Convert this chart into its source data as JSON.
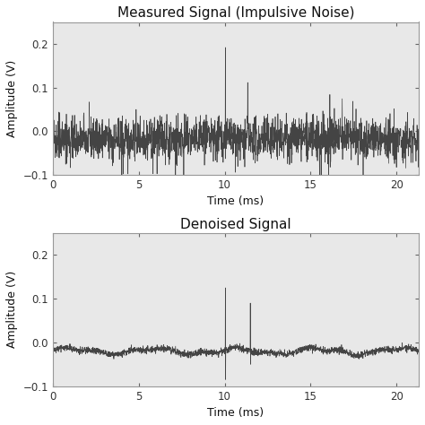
{
  "title1": "Measured Signal (Impulsive Noise)",
  "title2": "Denoised Signal",
  "xlabel": "Time (ms)",
  "ylabel": "Amplitude (V)",
  "xlim": [
    0,
    21.3
  ],
  "ylim": [
    -0.1,
    0.25
  ],
  "xticks": [
    0,
    5,
    10,
    15,
    20
  ],
  "yticks": [
    -0.1,
    0.0,
    0.1,
    0.2
  ],
  "line_color": "#444444",
  "line_width": 0.5,
  "bg_color": "#ffffff",
  "axes_bg": "#e8e8e8",
  "seed": 42,
  "n_samples": 2100,
  "duration_ms": 21.3,
  "title_fontsize": 11,
  "label_fontsize": 9,
  "tick_fontsize": 8.5
}
